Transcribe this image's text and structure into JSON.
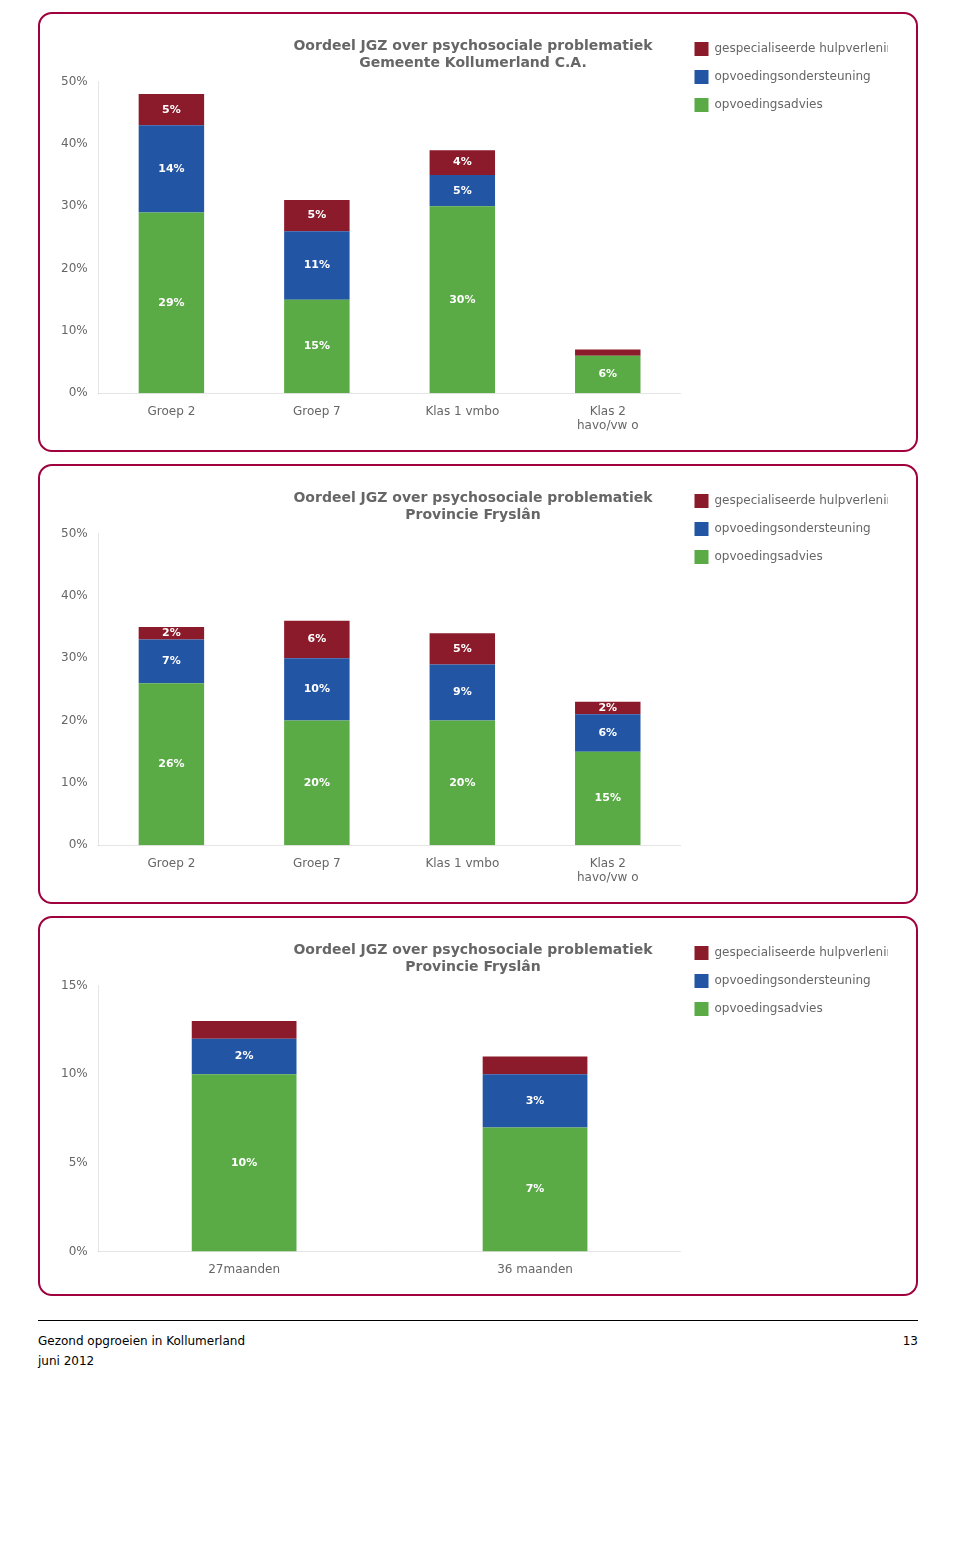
{
  "chart_data": [
    {
      "type": "bar",
      "title": "Oordeel JGZ over psychosociale problematiek\nGemeente Kollumerland C.A.",
      "categories": [
        "Groep 2",
        "Groep 7",
        "Klas 1 vmbo",
        "Klas 2\nhavo/vw o"
      ],
      "series": [
        {
          "name": "opvoedingsadvies",
          "color": "#5AAA46",
          "values": [
            29,
            15,
            30,
            6
          ],
          "value_labels": [
            "29%",
            "15%",
            "30%",
            "6%"
          ]
        },
        {
          "name": "opvoedingsondersteuning",
          "color": "#2255A4",
          "values": [
            14,
            11,
            5,
            0
          ],
          "value_labels": [
            "14%",
            "11%",
            "5%",
            null
          ]
        },
        {
          "name": "gespecialiseerde hulpverlening",
          "color": "#8B1A2A",
          "values": [
            5,
            5,
            4,
            1
          ],
          "value_labels": [
            "5%",
            "5%",
            "4%",
            null
          ]
        }
      ],
      "ylim": [
        0,
        50
      ],
      "yticks": [
        {
          "value": 0,
          "label": "0%"
        },
        {
          "value": 10,
          "label": "10%"
        },
        {
          "value": 20,
          "label": "20%"
        },
        {
          "value": 30,
          "label": "30%"
        },
        {
          "value": 40,
          "label": "40%"
        },
        {
          "value": 50,
          "label": "50%"
        }
      ],
      "stacked": true,
      "data_labels": true,
      "legend": "right",
      "grid": false
    },
    {
      "type": "bar",
      "title": "Oordeel JGZ over psychosociale problematiek\nProvincie Fryslân",
      "categories": [
        "Groep 2",
        "Groep 7",
        "Klas 1 vmbo",
        "Klas 2\nhavo/vw o"
      ],
      "series": [
        {
          "name": "opvoedingsadvies",
          "color": "#5AAA46",
          "values": [
            26,
            20,
            20,
            15
          ],
          "value_labels": [
            "26%",
            "20%",
            "20%",
            "15%"
          ]
        },
        {
          "name": "opvoedingsondersteuning",
          "color": "#2255A4",
          "values": [
            7,
            10,
            9,
            6
          ],
          "value_labels": [
            "7%",
            "10%",
            "9%",
            "6%"
          ]
        },
        {
          "name": "gespecialiseerde hulpverlening",
          "color": "#8B1A2A",
          "values": [
            2,
            6,
            5,
            2
          ],
          "value_labels": [
            "2%",
            "6%",
            "5%",
            "2%"
          ]
        }
      ],
      "ylim": [
        0,
        50
      ],
      "yticks": [
        {
          "value": 0,
          "label": "0%"
        },
        {
          "value": 10,
          "label": "10%"
        },
        {
          "value": 20,
          "label": "20%"
        },
        {
          "value": 30,
          "label": "30%"
        },
        {
          "value": 40,
          "label": "40%"
        },
        {
          "value": 50,
          "label": "50%"
        }
      ],
      "stacked": true,
      "data_labels": true,
      "legend": "right",
      "grid": false
    },
    {
      "type": "bar",
      "title": "Oordeel JGZ over psychosociale problematiek\nProvincie Fryslân",
      "categories": [
        "27maanden",
        "36 maanden"
      ],
      "series": [
        {
          "name": "opvoedingsadvies",
          "color": "#5AAA46",
          "values": [
            10,
            7
          ],
          "value_labels": [
            "10%",
            "7%"
          ]
        },
        {
          "name": "opvoedingsondersteuning",
          "color": "#2255A4",
          "values": [
            2,
            3
          ],
          "value_labels": [
            "2%",
            "3%"
          ]
        },
        {
          "name": "gespecialiseerde hulpverlening",
          "color": "#8B1A2A",
          "values": [
            1,
            1
          ],
          "value_labels": [
            null,
            null
          ]
        }
      ],
      "ylim": [
        0,
        15
      ],
      "yticks": [
        {
          "value": 0,
          "label": "0%"
        },
        {
          "value": 5,
          "label": "5%"
        },
        {
          "value": 10,
          "label": "10%"
        },
        {
          "value": 15,
          "label": "15%"
        }
      ],
      "stacked": true,
      "data_labels": true,
      "legend": "right",
      "grid": false
    }
  ],
  "annotations": [
    "Gezond opgroeien in Kollumerland",
    "juni 2012",
    "13"
  ]
}
